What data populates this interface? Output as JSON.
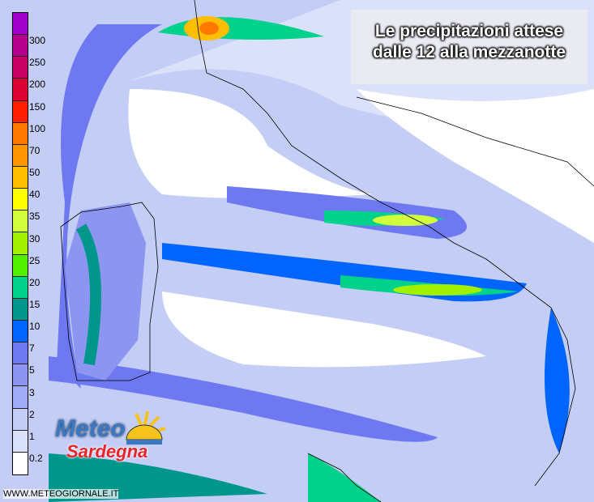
{
  "title": {
    "line1": "Le precipitazioni attese",
    "line2": "dalle 12 alla mezzanotte"
  },
  "legend": {
    "colors": [
      "#a000c8",
      "#b4008c",
      "#c80064",
      "#dc0032",
      "#ff1e00",
      "#ff7800",
      "#ff9600",
      "#ffbe00",
      "#ffff00",
      "#d2ff3c",
      "#a0f000",
      "#50f000",
      "#00d28c",
      "#00968c",
      "#0064ff",
      "#6e78f0",
      "#8c96f0",
      "#a0aaf5",
      "#c3cdf5",
      "#dce1fa",
      "#ffffff"
    ],
    "labels": [
      "300",
      "250",
      "200",
      "150",
      "100",
      "70",
      "50",
      "40",
      "35",
      "30",
      "25",
      "20",
      "15",
      "10",
      "7",
      "5",
      "3",
      "2",
      "1",
      "0.2"
    ]
  },
  "logo": {
    "line1": "Meteo",
    "line2": "Sardegna",
    "icon": "sun-icon"
  },
  "watermark": "WWW.METEOGIORNALE.IT"
}
